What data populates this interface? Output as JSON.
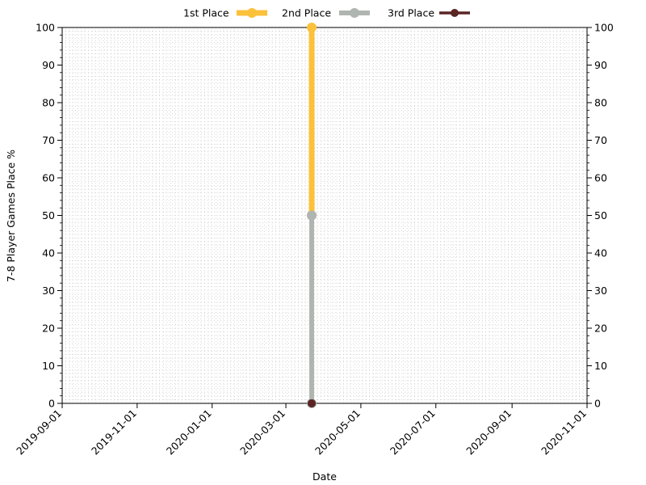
{
  "chart_data": {
    "type": "line",
    "title": "",
    "xlabel": "Date",
    "ylabel": "7-8 Player Games Place %",
    "x_axis_type": "date",
    "xlim": [
      "2019-09-01",
      "2020-11-01"
    ],
    "ylim": [
      0,
      100
    ],
    "x_ticks": [
      "2019-09-01",
      "2019-11-01",
      "2020-01-01",
      "2020-03-01",
      "2020-05-01",
      "2020-07-01",
      "2020-09-01",
      "2020-11-01"
    ],
    "y_ticks": [
      0,
      10,
      20,
      30,
      40,
      50,
      60,
      70,
      80,
      90,
      100
    ],
    "secondary_y_axis": true,
    "grid": "minor dotted",
    "legend_position": "top-center",
    "series": [
      {
        "name": "1st Place",
        "color": "#fbc13b",
        "points": [
          {
            "x": "2020-03-22",
            "y": 50
          },
          {
            "x": "2020-03-22",
            "y": 100
          }
        ]
      },
      {
        "name": "2nd Place",
        "color": "#afb5b1",
        "points": [
          {
            "x": "2020-03-22",
            "y": 0
          },
          {
            "x": "2020-03-22",
            "y": 50
          }
        ]
      },
      {
        "name": "3rd Place",
        "color": "#5a2424",
        "points": [
          {
            "x": "2020-03-22",
            "y": 0
          },
          {
            "x": "2020-03-22",
            "y": 0
          }
        ]
      }
    ]
  }
}
